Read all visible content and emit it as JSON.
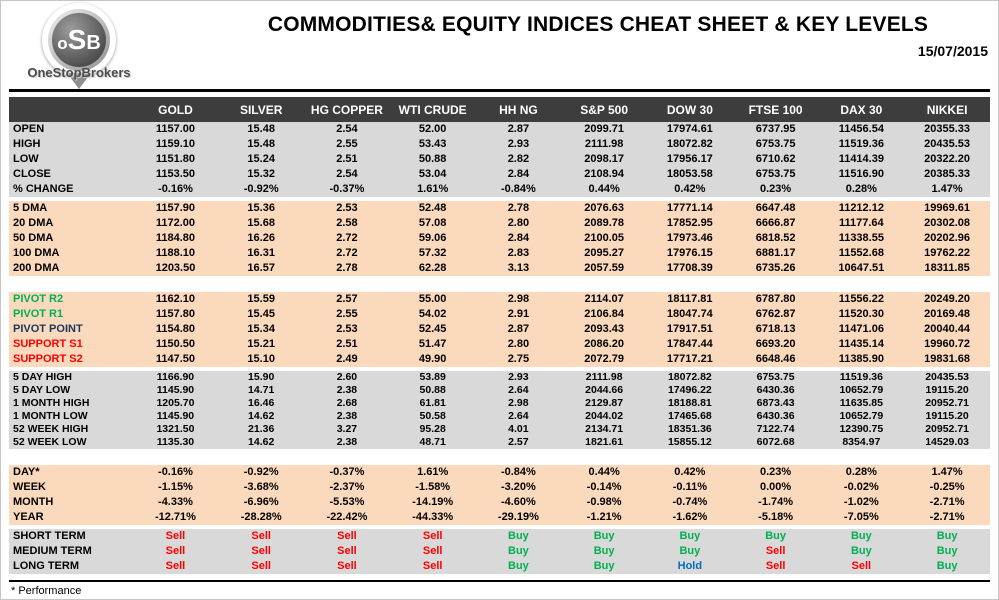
{
  "header": {
    "logo_monogram": [
      "o",
      "S",
      "B"
    ],
    "logo_text": "OneStopBrokers",
    "title": "COMMODITIES& EQUITY INDICES CHEAT SHEET & KEY LEVELS",
    "date": "15/07/2015"
  },
  "footnote": "* Performance",
  "colors": {
    "section_gray": "#d9d9d9",
    "section_peach": "#fbd9bc",
    "divider_bar_blue": "#3a6191",
    "header_row_dark": "#3d3d3d",
    "sell_red": "#ff0000",
    "buy_green": "#00b050",
    "hold_blue": "#0070c0"
  },
  "table": {
    "columns": [
      "GOLD",
      "SILVER",
      "HG COPPER",
      "WTI CRUDE",
      "HH NG",
      "S&P 500",
      "DOW 30",
      "FTSE 100",
      "DAX 30",
      "NIKKEI"
    ],
    "sections": [
      {
        "name": "ohlc",
        "tone": "gray",
        "rows": [
          {
            "label": "OPEN",
            "values": [
              "1157.00",
              "15.48",
              "2.54",
              "52.00",
              "2.87",
              "2099.71",
              "17974.61",
              "6737.95",
              "11456.54",
              "20355.33"
            ]
          },
          {
            "label": "HIGH",
            "values": [
              "1159.10",
              "15.48",
              "2.55",
              "53.43",
              "2.93",
              "2111.98",
              "18072.82",
              "6753.75",
              "11519.36",
              "20435.53"
            ]
          },
          {
            "label": "LOW",
            "values": [
              "1151.80",
              "15.24",
              "2.51",
              "50.88",
              "2.82",
              "2098.17",
              "17956.17",
              "6710.62",
              "11414.39",
              "20322.20"
            ]
          },
          {
            "label": "CLOSE",
            "values": [
              "1153.50",
              "15.32",
              "2.54",
              "53.04",
              "2.84",
              "2108.94",
              "18053.58",
              "6753.75",
              "11516.90",
              "20385.33"
            ]
          },
          {
            "label": "% CHANGE",
            "values": [
              "-0.16%",
              "-0.92%",
              "-0.37%",
              "1.61%",
              "-0.84%",
              "0.44%",
              "0.42%",
              "0.23%",
              "0.28%",
              "1.47%"
            ]
          }
        ]
      },
      {
        "name": "dma",
        "tone": "peach",
        "rows": [
          {
            "label": "5 DMA",
            "values": [
              "1157.90",
              "15.36",
              "2.53",
              "52.48",
              "2.78",
              "2076.63",
              "17771.14",
              "6647.48",
              "11212.12",
              "19969.61"
            ]
          },
          {
            "label": "20 DMA",
            "values": [
              "1172.00",
              "15.68",
              "2.58",
              "57.08",
              "2.80",
              "2089.78",
              "17852.95",
              "6666.87",
              "11177.64",
              "20302.08"
            ]
          },
          {
            "label": "50 DMA",
            "values": [
              "1184.80",
              "16.26",
              "2.72",
              "59.06",
              "2.84",
              "2100.05",
              "17973.46",
              "6818.52",
              "11338.55",
              "20202.96"
            ]
          },
          {
            "label": "100 DMA",
            "values": [
              "1188.10",
              "16.31",
              "2.72",
              "57.32",
              "2.83",
              "2095.27",
              "17976.15",
              "6881.17",
              "11552.68",
              "19762.22"
            ]
          },
          {
            "label": "200 DMA",
            "values": [
              "1203.50",
              "16.57",
              "2.78",
              "62.28",
              "3.13",
              "2057.59",
              "17708.39",
              "6735.26",
              "10647.51",
              "18311.85"
            ]
          }
        ]
      },
      {
        "name": "pivots",
        "tone": "peach",
        "rows": [
          {
            "label": "PIVOT R2",
            "label_color": "green",
            "values": [
              "1162.10",
              "15.59",
              "2.57",
              "55.00",
              "2.98",
              "2114.07",
              "18117.81",
              "6787.80",
              "11556.22",
              "20249.20"
            ]
          },
          {
            "label": "PIVOT R1",
            "label_color": "green",
            "values": [
              "1157.80",
              "15.45",
              "2.55",
              "54.02",
              "2.91",
              "2106.84",
              "18047.74",
              "6762.87",
              "11520.30",
              "20169.48"
            ]
          },
          {
            "label": "PIVOT POINT",
            "label_color": "navy",
            "values": [
              "1154.80",
              "15.34",
              "2.53",
              "52.45",
              "2.87",
              "2093.43",
              "17917.51",
              "6718.13",
              "11471.06",
              "20040.44"
            ]
          },
          {
            "label": "SUPPORT S1",
            "label_color": "red",
            "values": [
              "1150.50",
              "15.21",
              "2.51",
              "51.47",
              "2.80",
              "2086.20",
              "17847.44",
              "6693.20",
              "11435.14",
              "19960.72"
            ]
          },
          {
            "label": "SUPPORT S2",
            "label_color": "red",
            "values": [
              "1147.50",
              "15.10",
              "2.49",
              "49.90",
              "2.75",
              "2072.79",
              "17717.21",
              "6648.46",
              "11385.90",
              "19831.68"
            ]
          }
        ]
      },
      {
        "name": "ranges",
        "tone": "gray",
        "rows": [
          {
            "label": "5 DAY HIGH",
            "values": [
              "1166.90",
              "15.90",
              "2.60",
              "53.89",
              "2.93",
              "2111.98",
              "18072.82",
              "6753.75",
              "11519.36",
              "20435.53"
            ]
          },
          {
            "label": "5 DAY LOW",
            "values": [
              "1145.90",
              "14.71",
              "2.38",
              "50.88",
              "2.64",
              "2044.66",
              "17496.22",
              "6430.36",
              "10652.79",
              "19115.20"
            ]
          },
          {
            "label": "1 MONTH HIGH",
            "values": [
              "1205.70",
              "16.46",
              "2.68",
              "61.81",
              "2.98",
              "2129.87",
              "18188.81",
              "6873.43",
              "11635.85",
              "20952.71"
            ]
          },
          {
            "label": "1 MONTH LOW",
            "values": [
              "1145.90",
              "14.62",
              "2.38",
              "50.58",
              "2.64",
              "2044.02",
              "17465.68",
              "6430.36",
              "10652.79",
              "19115.20"
            ]
          },
          {
            "label": "52 WEEK HIGH",
            "values": [
              "1321.50",
              "21.36",
              "3.27",
              "95.28",
              "4.01",
              "2134.71",
              "18351.36",
              "7122.74",
              "12390.75",
              "20952.71"
            ]
          },
          {
            "label": "52 WEEK LOW",
            "values": [
              "1135.30",
              "14.62",
              "2.38",
              "48.71",
              "2.57",
              "1821.61",
              "15855.12",
              "6072.68",
              "8354.97",
              "14529.03"
            ]
          }
        ]
      },
      {
        "name": "performance",
        "tone": "peach",
        "rows": [
          {
            "label": "DAY*",
            "values": [
              "-0.16%",
              "-0.92%",
              "-0.37%",
              "1.61%",
              "-0.84%",
              "0.44%",
              "0.42%",
              "0.23%",
              "0.28%",
              "1.47%"
            ]
          },
          {
            "label": "WEEK",
            "values": [
              "-1.15%",
              "-3.68%",
              "-2.37%",
              "-1.58%",
              "-3.20%",
              "-0.14%",
              "-0.11%",
              "0.00%",
              "-0.02%",
              "-0.25%"
            ]
          },
          {
            "label": "MONTH",
            "values": [
              "-4.33%",
              "-6.96%",
              "-5.53%",
              "-14.19%",
              "-4.60%",
              "-0.98%",
              "-0.74%",
              "-1.74%",
              "-1.02%",
              "-2.71%"
            ]
          },
          {
            "label": "YEAR",
            "values": [
              "-12.71%",
              "-28.28%",
              "-22.42%",
              "-44.33%",
              "-29.19%",
              "-1.21%",
              "-1.62%",
              "-5.18%",
              "-7.05%",
              "-2.71%"
            ]
          }
        ]
      },
      {
        "name": "signals",
        "tone": "gray",
        "rows": [
          {
            "label": "SHORT TERM",
            "values": [
              "Sell",
              "Sell",
              "Sell",
              "Sell",
              "Buy",
              "Buy",
              "Buy",
              "Buy",
              "Buy",
              "Buy"
            ]
          },
          {
            "label": "MEDIUM TERM",
            "values": [
              "Sell",
              "Sell",
              "Sell",
              "Sell",
              "Buy",
              "Buy",
              "Buy",
              "Sell",
              "Buy",
              "Buy"
            ]
          },
          {
            "label": "LONG TERM",
            "values": [
              "Sell",
              "Sell",
              "Sell",
              "Sell",
              "Buy",
              "Buy",
              "Hold",
              "Sell",
              "Sell",
              "Buy"
            ]
          }
        ]
      }
    ]
  }
}
